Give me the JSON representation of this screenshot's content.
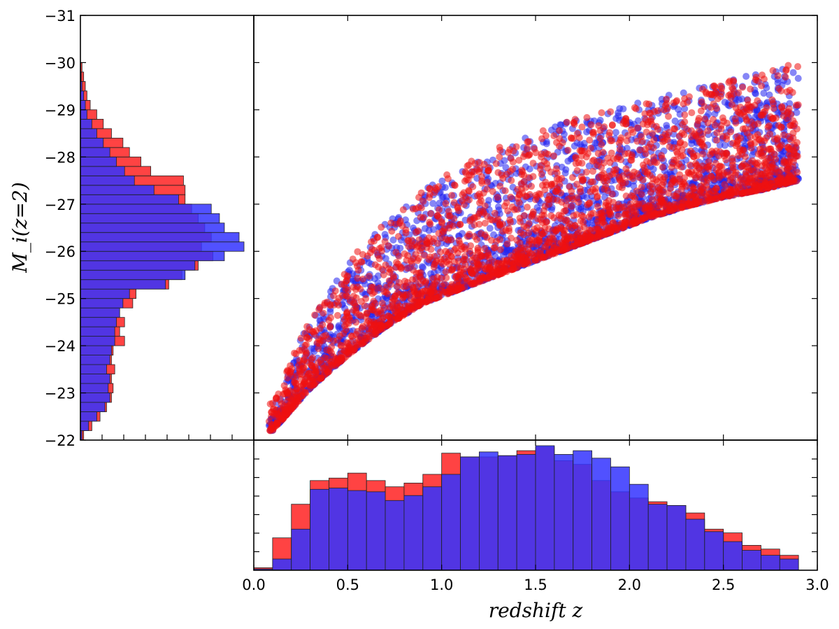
{
  "chart_data": [
    {
      "type": "scatter",
      "name": "main-scatter",
      "xlim": [
        0.0,
        3.0
      ],
      "ylim": [
        -22,
        -31
      ],
      "x_ticks": [
        "0.0",
        "0.5",
        "1.0",
        "1.5",
        "2.0",
        "2.5",
        "3.0"
      ],
      "y_ticks": [
        "-22",
        "-23",
        "-24",
        "-25",
        "-26",
        "-27",
        "-28",
        "-29",
        "-30",
        "-31"
      ],
      "xlabel": "redshift z",
      "ylabel": "M_i(z=2)",
      "series": [
        {
          "name": "blue",
          "color": "#2222ee"
        },
        {
          "name": "red",
          "color": "#ee1111"
        }
      ],
      "envelope": {
        "z": [
          0.1,
          0.3,
          0.5,
          0.7,
          0.9,
          1.1,
          1.3,
          1.5,
          1.7,
          1.9,
          2.1,
          2.3,
          2.5,
          2.7,
          2.9
        ],
        "faint_limit": [
          -22.2,
          -23.1,
          -23.8,
          -24.4,
          -24.9,
          -25.2,
          -25.5,
          -25.8,
          -26.1,
          -26.4,
          -26.7,
          -26.95,
          -27.15,
          -27.3,
          -27.5
        ],
        "bright_limit": [
          -22.8,
          -24.6,
          -25.8,
          -26.6,
          -27.3,
          -27.8,
          -28.2,
          -28.5,
          -28.8,
          -29.0,
          -29.2,
          -29.4,
          -29.6,
          -29.8,
          -30.0
        ]
      }
    },
    {
      "type": "bar",
      "name": "redshift-histogram",
      "orientation": "vertical",
      "xlim": [
        0.0,
        3.0
      ],
      "bin_width": 0.1,
      "bin_edges_start": [
        0.0,
        0.1,
        0.2,
        0.3,
        0.4,
        0.5,
        0.6,
        0.7,
        0.8,
        0.9,
        1.0,
        1.1,
        1.2,
        1.3,
        1.4,
        1.5,
        1.6,
        1.7,
        1.8,
        1.9,
        2.0,
        2.1,
        2.2,
        2.3,
        2.4,
        2.5,
        2.6,
        2.7,
        2.8
      ],
      "series": [
        {
          "name": "red",
          "color": "#ff2222",
          "values": [
            0.02,
            0.26,
            0.53,
            0.72,
            0.74,
            0.78,
            0.72,
            0.67,
            0.7,
            0.77,
            0.94,
            0.91,
            0.91,
            0.92,
            0.96,
            0.99,
            0.88,
            0.85,
            0.72,
            0.63,
            0.58,
            0.55,
            0.52,
            0.46,
            0.33,
            0.3,
            0.2,
            0.17,
            0.12
          ]
        },
        {
          "name": "blue",
          "color": "#3333ff",
          "values": [
            0.01,
            0.09,
            0.33,
            0.65,
            0.66,
            0.64,
            0.63,
            0.56,
            0.6,
            0.67,
            0.77,
            0.91,
            0.95,
            0.92,
            0.93,
            1.0,
            0.93,
            0.96,
            0.9,
            0.83,
            0.69,
            0.53,
            0.52,
            0.41,
            0.31,
            0.23,
            0.16,
            0.12,
            0.09
          ]
        }
      ]
    },
    {
      "type": "bar",
      "name": "magnitude-histogram",
      "orientation": "horizontal",
      "ylim": [
        -22,
        -31
      ],
      "bin_width": 0.2,
      "bin_edges_start": [
        -22.0,
        -22.2,
        -22.4,
        -22.6,
        -22.8,
        -23.0,
        -23.2,
        -23.4,
        -23.6,
        -23.8,
        -24.0,
        -24.2,
        -24.4,
        -24.6,
        -24.8,
        -25.0,
        -25.2,
        -25.4,
        -25.6,
        -25.8,
        -26.0,
        -26.2,
        -26.4,
        -26.6,
        -26.8,
        -27.0,
        -27.2,
        -27.4,
        -27.6,
        -27.8,
        -28.0,
        -28.2,
        -28.4,
        -28.6,
        -28.8,
        -29.0,
        -29.2,
        -29.4,
        -29.6,
        -29.8
      ],
      "series": [
        {
          "name": "red",
          "color": "#ff2222",
          "values": [
            0.02,
            0.07,
            0.12,
            0.16,
            0.19,
            0.2,
            0.19,
            0.21,
            0.19,
            0.2,
            0.27,
            0.24,
            0.27,
            0.24,
            0.32,
            0.34,
            0.54,
            0.62,
            0.72,
            0.81,
            0.74,
            0.8,
            0.76,
            0.72,
            0.68,
            0.64,
            0.64,
            0.63,
            0.43,
            0.37,
            0.3,
            0.26,
            0.19,
            0.14,
            0.1,
            0.06,
            0.04,
            0.03,
            0.02,
            0.01
          ]
        },
        {
          "name": "blue",
          "color": "#3333ff",
          "values": [
            0.01,
            0.05,
            0.1,
            0.15,
            0.18,
            0.17,
            0.18,
            0.16,
            0.18,
            0.19,
            0.21,
            0.21,
            0.22,
            0.24,
            0.26,
            0.3,
            0.52,
            0.64,
            0.7,
            0.88,
            1.0,
            0.97,
            0.88,
            0.85,
            0.8,
            0.6,
            0.45,
            0.33,
            0.27,
            0.22,
            0.18,
            0.14,
            0.1,
            0.07,
            0.04,
            0.03,
            0.02,
            0.01,
            0.005,
            0.002
          ]
        }
      ]
    }
  ]
}
